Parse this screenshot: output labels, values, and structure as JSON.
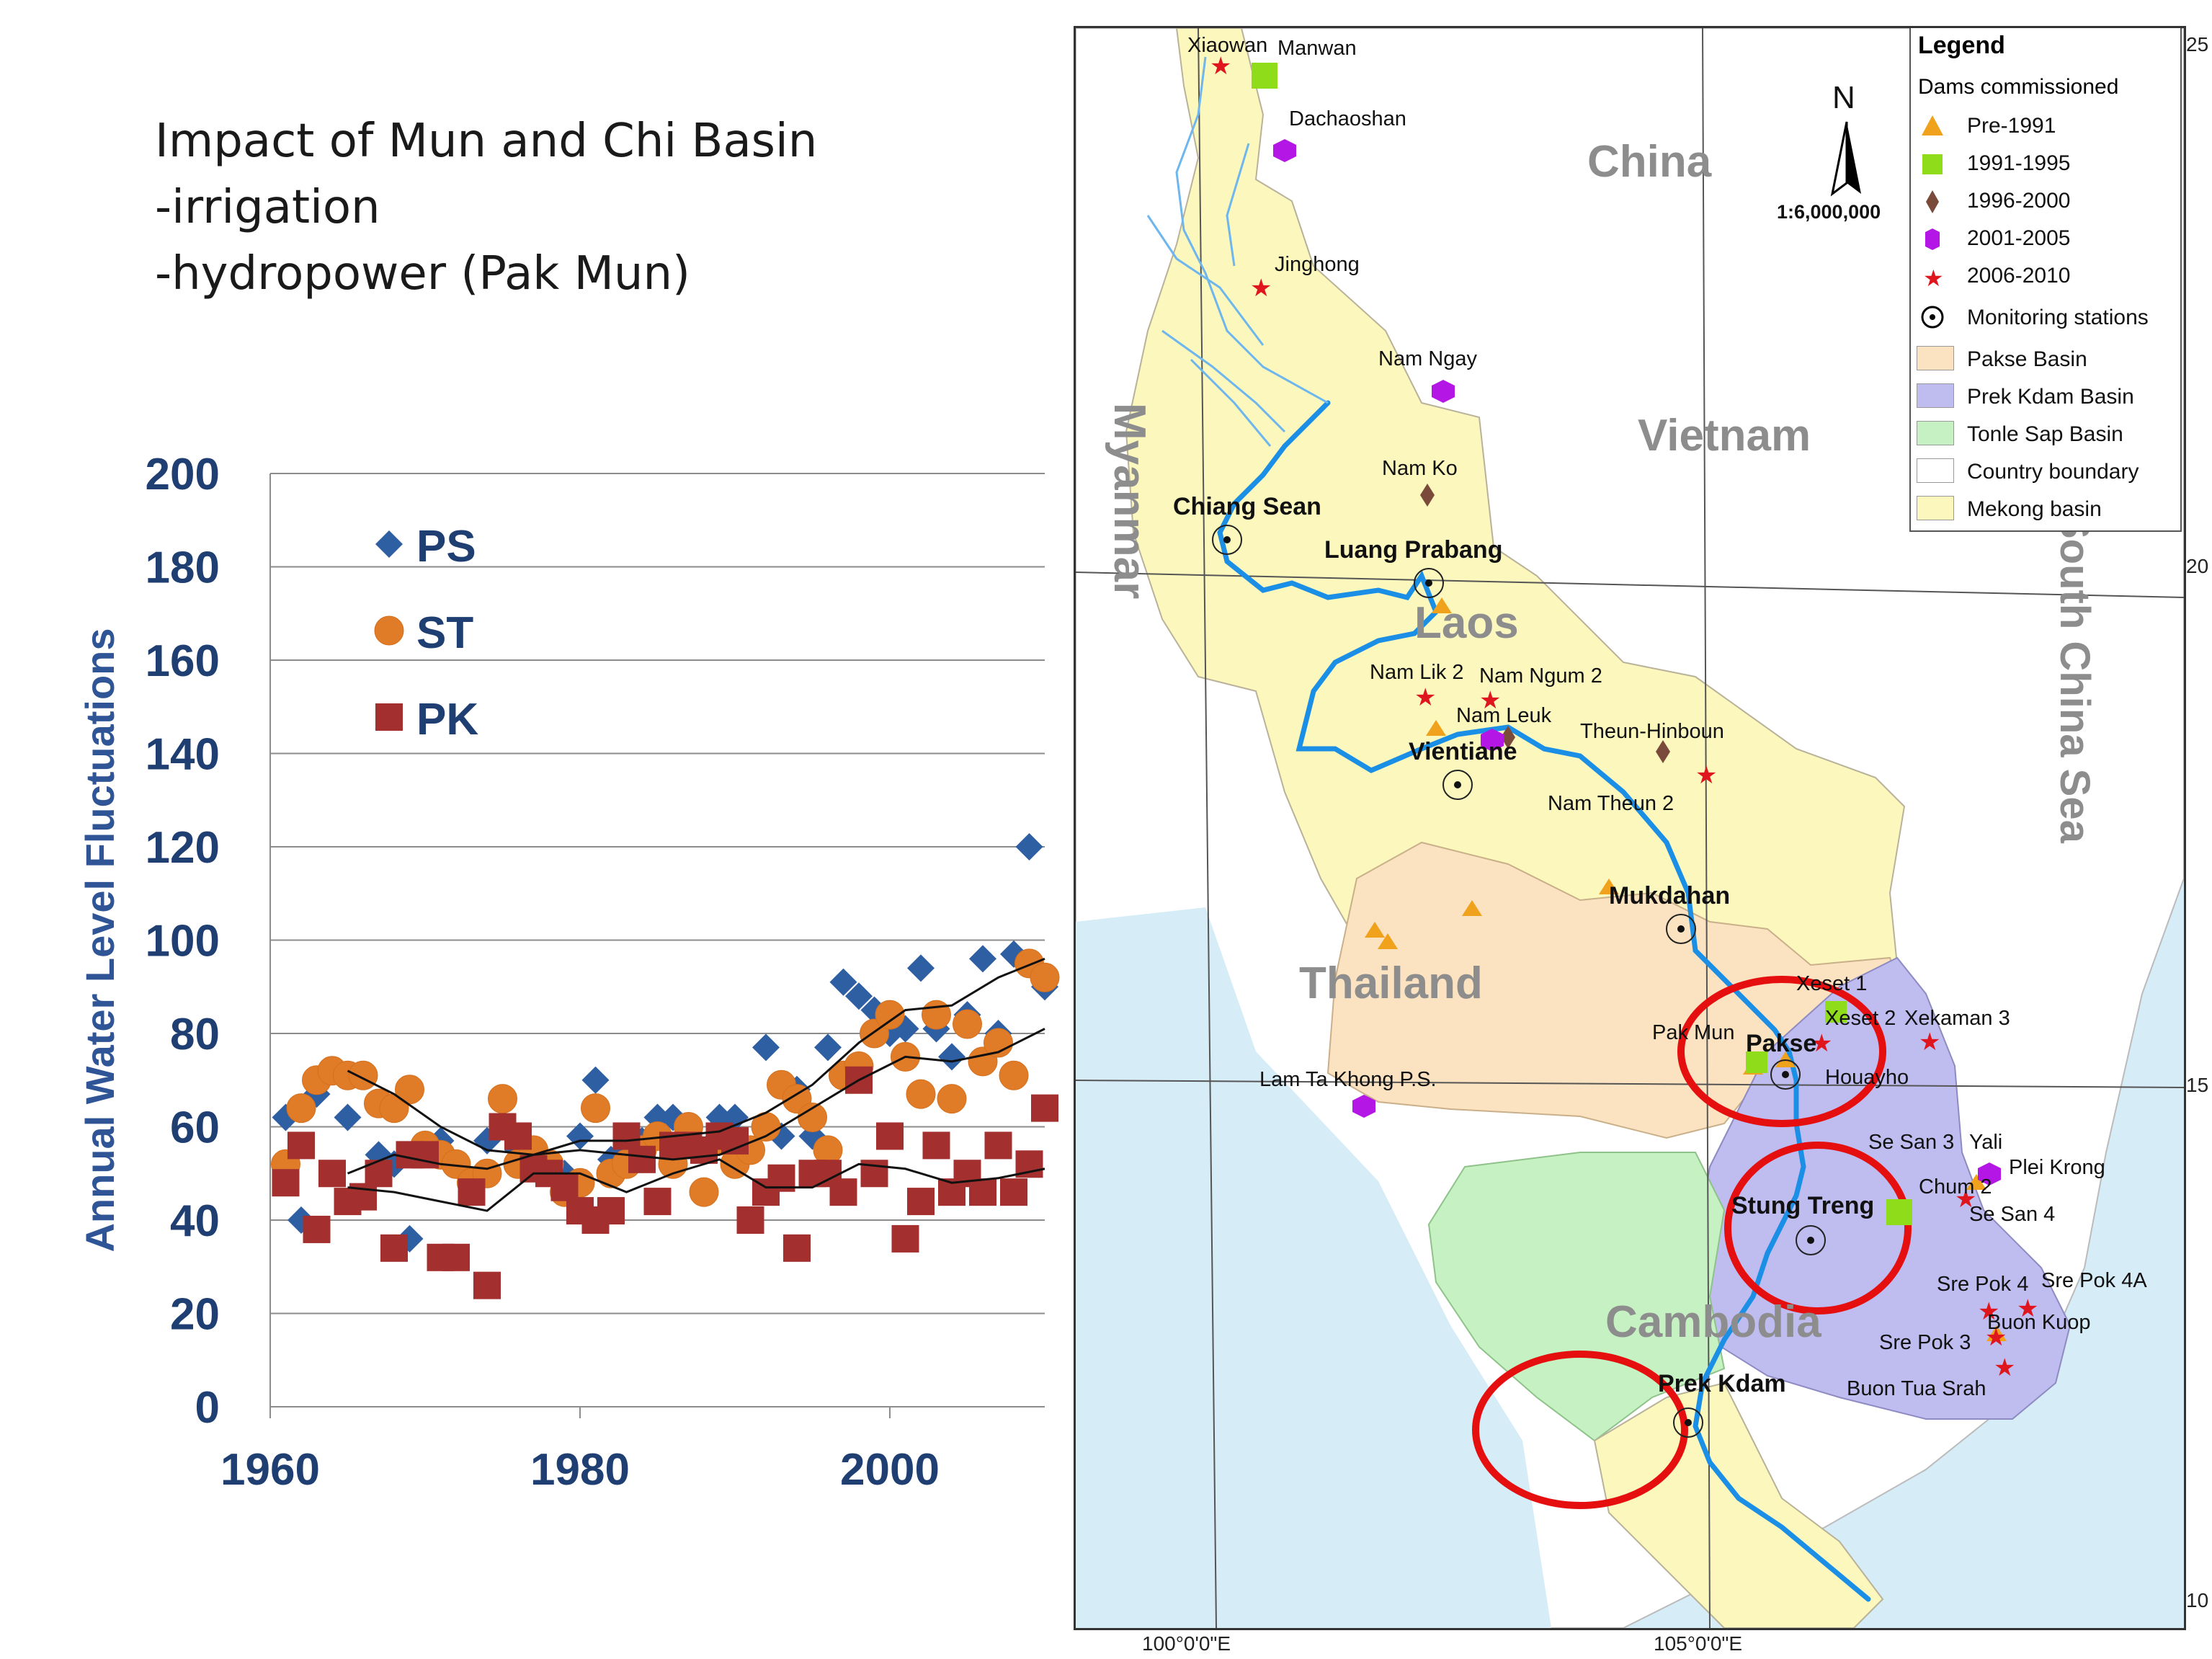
{
  "title_lines": [
    "Impact of Mun and Chi Basin",
    "-irrigation",
    "-hydropower (Pak Mun)"
  ],
  "chart_data": {
    "type": "scatter",
    "ylabel": "Annual Water Level Fluctuations",
    "xlabel": "",
    "xlim": [
      1960,
      2010
    ],
    "ylim": [
      0,
      200
    ],
    "x_ticks": [
      1960,
      1980,
      2000
    ],
    "y_ticks": [
      0,
      20,
      40,
      60,
      80,
      100,
      120,
      140,
      160,
      180,
      200
    ],
    "grid": "horizontal",
    "legend_position": "top-left",
    "series": [
      {
        "name": "PS",
        "color": "#2e5fa3",
        "marker": "diamond",
        "x": [
          1961,
          1962,
          1963,
          1964,
          1965,
          1966,
          1967,
          1968,
          1969,
          1970,
          1971,
          1972,
          1973,
          1974,
          1975,
          1976,
          1977,
          1978,
          1979,
          1980,
          1981,
          1982,
          1983,
          1984,
          1985,
          1986,
          1987,
          1988,
          1989,
          1990,
          1991,
          1992,
          1993,
          1994,
          1995,
          1996,
          1997,
          1998,
          1999,
          2000,
          2001,
          2002,
          2003,
          2004,
          2005,
          2006,
          2007,
          2008,
          2009,
          2010
        ],
        "y": [
          62,
          40,
          67,
          50,
          62,
          45,
          54,
          52,
          36,
          55,
          57,
          52,
          48,
          57,
          60,
          55,
          52,
          50,
          50,
          58,
          70,
          53,
          55,
          57,
          62,
          62,
          58,
          55,
          62,
          62,
          55,
          77,
          58,
          68,
          58,
          77,
          91,
          88,
          85,
          80,
          81,
          94,
          81,
          75,
          84,
          96,
          80,
          97,
          120,
          90
        ]
      },
      {
        "name": "ST",
        "color": "#e07b28",
        "marker": "circle",
        "x": [
          1961,
          1962,
          1963,
          1964,
          1965,
          1966,
          1967,
          1968,
          1969,
          1970,
          1971,
          1972,
          1973,
          1974,
          1975,
          1976,
          1977,
          1978,
          1979,
          1980,
          1981,
          1982,
          1983,
          1984,
          1985,
          1986,
          1987,
          1988,
          1989,
          1990,
          1991,
          1992,
          1993,
          1994,
          1995,
          1996,
          1997,
          1998,
          1999,
          2000,
          2001,
          2002,
          2003,
          2004,
          2005,
          2006,
          2007,
          2008,
          2009,
          2010
        ],
        "y": [
          52,
          64,
          70,
          72,
          71,
          71,
          65,
          64,
          68,
          56,
          54,
          52,
          48,
          50,
          66,
          52,
          55,
          52,
          46,
          48,
          64,
          50,
          52,
          55,
          58,
          52,
          60,
          46,
          57,
          52,
          55,
          60,
          69,
          66,
          62,
          55,
          71,
          73,
          80,
          84,
          75,
          67,
          84,
          66,
          82,
          74,
          78,
          71,
          95,
          92
        ]
      },
      {
        "name": "PK",
        "color": "#a3302e",
        "marker": "square",
        "x": [
          1961,
          1962,
          1963,
          1964,
          1965,
          1966,
          1967,
          1968,
          1969,
          1970,
          1971,
          1972,
          1973,
          1974,
          1975,
          1976,
          1977,
          1978,
          1979,
          1980,
          1981,
          1982,
          1983,
          1984,
          1985,
          1986,
          1987,
          1988,
          1989,
          1990,
          1991,
          1992,
          1993,
          1994,
          1995,
          1996,
          1997,
          1998,
          1999,
          2000,
          2001,
          2002,
          2003,
          2004,
          2005,
          2006,
          2007,
          2008,
          2009,
          2010
        ],
        "y": [
          48,
          56,
          38,
          50,
          44,
          45,
          50,
          34,
          54,
          54,
          32,
          32,
          46,
          26,
          60,
          58,
          51,
          50,
          47,
          42,
          40,
          42,
          58,
          53,
          44,
          56,
          56,
          55,
          58,
          57,
          40,
          46,
          49,
          34,
          50,
          50,
          46,
          70,
          50,
          58,
          36,
          44,
          56,
          46,
          50,
          46,
          56,
          46,
          52,
          64
        ]
      }
    ],
    "trend_lines": [
      {
        "series": "PS",
        "x": [
          1965,
          1968,
          1971,
          1974,
          1977,
          1980,
          1983,
          1986,
          1989,
          1992,
          1995,
          1998,
          2001,
          2004,
          2007,
          2010
        ],
        "y": [
          50,
          54,
          52,
          51,
          54,
          57,
          57,
          58,
          59,
          63,
          69,
          78,
          85,
          86,
          92,
          96
        ]
      },
      {
        "series": "ST",
        "x": [
          1965,
          1968,
          1971,
          1974,
          1977,
          1980,
          1983,
          1986,
          1989,
          1992,
          1995,
          1998,
          2001,
          2004,
          2007,
          2010
        ],
        "y": [
          72,
          67,
          60,
          55,
          54,
          55,
          54,
          53,
          54,
          58,
          64,
          70,
          75,
          74,
          76,
          81
        ]
      },
      {
        "series": "PK",
        "x": [
          1965,
          1968,
          1971,
          1974,
          1977,
          1980,
          1983,
          1986,
          1989,
          1992,
          1995,
          1998,
          2001,
          2004,
          2007,
          2010
        ],
        "y": [
          47,
          46,
          44,
          42,
          50,
          50,
          46,
          50,
          53,
          47,
          47,
          52,
          51,
          48,
          49,
          51
        ]
      }
    ]
  },
  "map": {
    "countries": [
      "China",
      "Vietnam",
      "Myanmar",
      "Laos",
      "Thailand",
      "Cambodia",
      "South China Sea"
    ],
    "stations": [
      "Chiang Sean",
      "Luang Prabang",
      "Vientiane",
      "Mukdahan",
      "Pakse",
      "Stung Treng",
      "Prek Kdam"
    ],
    "dams": [
      "Xiaowan",
      "Manwan",
      "Dachaoshan",
      "Jinghong",
      "Nam Ngay",
      "Nam Ko",
      "Nam Lik 2",
      "Nam Ngum 2",
      "Nam Leuk",
      "Theun-Hinboun",
      "Nam Theun 2",
      "Xeset 1",
      "Xeset 2",
      "Xekaman 3",
      "Pak Mun",
      "Houayho",
      "Lam Ta Khong P.S.",
      "Se San 3",
      "Yali",
      "Plei Krong",
      "Chum 2",
      "Se San 4",
      "Sre Pok 4",
      "Sre Pok 4A",
      "Buon Kuop",
      "Sre Pok 3",
      "Buon Tua Srah"
    ],
    "scale": "1:6,000,000",
    "north": "N",
    "lon_labels": [
      "100°0'0\"E",
      "105°0'0\"E"
    ],
    "lat_labels": [
      "25",
      "20",
      "15",
      "10"
    ],
    "legend": {
      "title": "Legend",
      "subtitle": "Dams commissioned",
      "items": [
        {
          "label": "Pre-1991",
          "symbol": "triangle",
          "color": "#f0a21c"
        },
        {
          "label": "1991-1995",
          "symbol": "square",
          "color": "#8fdc1a"
        },
        {
          "label": "1996-2000",
          "symbol": "diamond",
          "color": "#7a4a3a"
        },
        {
          "label": "2001-2005",
          "symbol": "hexagon",
          "color": "#b416e6"
        },
        {
          "label": "2006-2010",
          "symbol": "star",
          "color": "#e0161e"
        },
        {
          "label": "Monitoring stations",
          "symbol": "station",
          "color": "#000000"
        },
        {
          "label": "Pakse Basin",
          "symbol": "fill",
          "color": "#fbe2c0"
        },
        {
          "label": "Prek Kdam Basin",
          "symbol": "fill",
          "color": "#bfbcf0"
        },
        {
          "label": "Tonle Sap Basin",
          "symbol": "fill",
          "color": "#c6f2c3"
        },
        {
          "label": "Country boundary",
          "symbol": "fill",
          "color": "#ffffff"
        },
        {
          "label": "Mekong basin",
          "symbol": "fill",
          "color": "#fbf7bd"
        }
      ]
    }
  }
}
